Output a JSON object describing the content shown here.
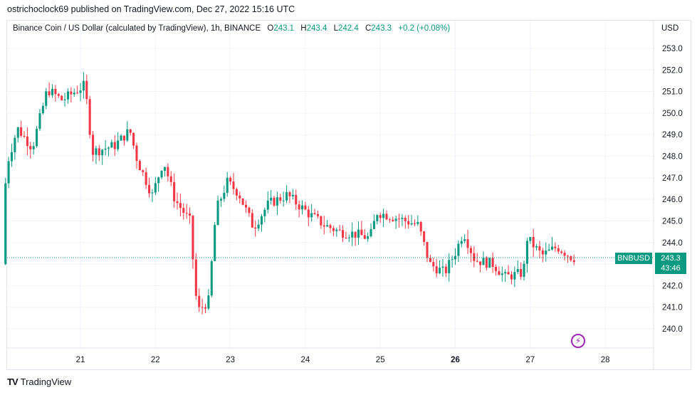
{
  "publisher": "ostrichoclock69 published on TradingView.com, Dec 27, 2022 15:16 UTC",
  "legend": {
    "title": "Binance Coin / US Dollar (calculated by TradingView), 1h, BINANCE",
    "o_label": "O",
    "o_value": "243.1",
    "h_label": "H",
    "h_value": "243.4",
    "l_label": "L",
    "l_value": "242.4",
    "c_label": "C",
    "c_value": "243.3",
    "change": "+0.2 (+0.08%)"
  },
  "currency": "USD",
  "symbol_tag": "BNBUSD",
  "last_price": "243.3",
  "countdown": "43:46",
  "brand": "TradingView",
  "brand_logo": "TV",
  "bolt_icon": "⚡",
  "colors": {
    "up": "#089981",
    "down": "#f23645",
    "grid": "#f0f3fa",
    "text": "#131722"
  },
  "chart_data": {
    "type": "candlestick",
    "title": "Binance Coin / US Dollar (calculated by TradingView), 1h, BINANCE",
    "y_ticks": [
      "253.0",
      "252.0",
      "251.0",
      "250.0",
      "249.0",
      "248.0",
      "247.0",
      "246.0",
      "245.0",
      "244.0",
      "243.0",
      "242.0",
      "241.0",
      "240.0"
    ],
    "x_ticks": [
      "21",
      "22",
      "23",
      "24",
      "25",
      "26",
      "27",
      "28"
    ],
    "ylim": [
      239.2,
      253.8
    ],
    "grid": true,
    "last_price": 243.3,
    "anchors": [
      {
        "day": 20.0,
        "price": 243.0
      },
      {
        "day": 20.05,
        "price": 247.5
      },
      {
        "day": 20.2,
        "price": 249.3
      },
      {
        "day": 20.4,
        "price": 248.4
      },
      {
        "day": 20.6,
        "price": 251.1
      },
      {
        "day": 20.8,
        "price": 250.6
      },
      {
        "day": 21.1,
        "price": 251.3
      },
      {
        "day": 21.2,
        "price": 248.2
      },
      {
        "day": 21.5,
        "price": 248.5
      },
      {
        "day": 21.7,
        "price": 249.2
      },
      {
        "day": 21.8,
        "price": 247.8
      },
      {
        "day": 22.0,
        "price": 246.2
      },
      {
        "day": 22.15,
        "price": 247.8
      },
      {
        "day": 22.3,
        "price": 246.0
      },
      {
        "day": 22.5,
        "price": 245.0
      },
      {
        "day": 22.6,
        "price": 240.8
      },
      {
        "day": 22.75,
        "price": 241.3
      },
      {
        "day": 22.85,
        "price": 245.5
      },
      {
        "day": 23.0,
        "price": 246.8
      },
      {
        "day": 23.15,
        "price": 246.3
      },
      {
        "day": 23.35,
        "price": 244.7
      },
      {
        "day": 23.55,
        "price": 245.8
      },
      {
        "day": 23.8,
        "price": 246.2
      },
      {
        "day": 24.1,
        "price": 245.3
      },
      {
        "day": 24.3,
        "price": 244.8
      },
      {
        "day": 24.5,
        "price": 244.5
      },
      {
        "day": 24.7,
        "price": 244.4
      },
      {
        "day": 24.9,
        "price": 244.2
      },
      {
        "day": 25.0,
        "price": 245.4
      },
      {
        "day": 25.3,
        "price": 245.1
      },
      {
        "day": 25.55,
        "price": 244.8
      },
      {
        "day": 25.7,
        "price": 243.0
      },
      {
        "day": 25.9,
        "price": 242.6
      },
      {
        "day": 26.05,
        "price": 243.6
      },
      {
        "day": 26.15,
        "price": 244.5
      },
      {
        "day": 26.3,
        "price": 243.2
      },
      {
        "day": 26.55,
        "price": 243.0
      },
      {
        "day": 26.7,
        "price": 242.4
      },
      {
        "day": 26.95,
        "price": 242.6
      },
      {
        "day": 27.0,
        "price": 244.2
      },
      {
        "day": 27.2,
        "price": 243.4
      },
      {
        "day": 27.4,
        "price": 243.8
      },
      {
        "day": 27.6,
        "price": 243.3
      }
    ]
  }
}
